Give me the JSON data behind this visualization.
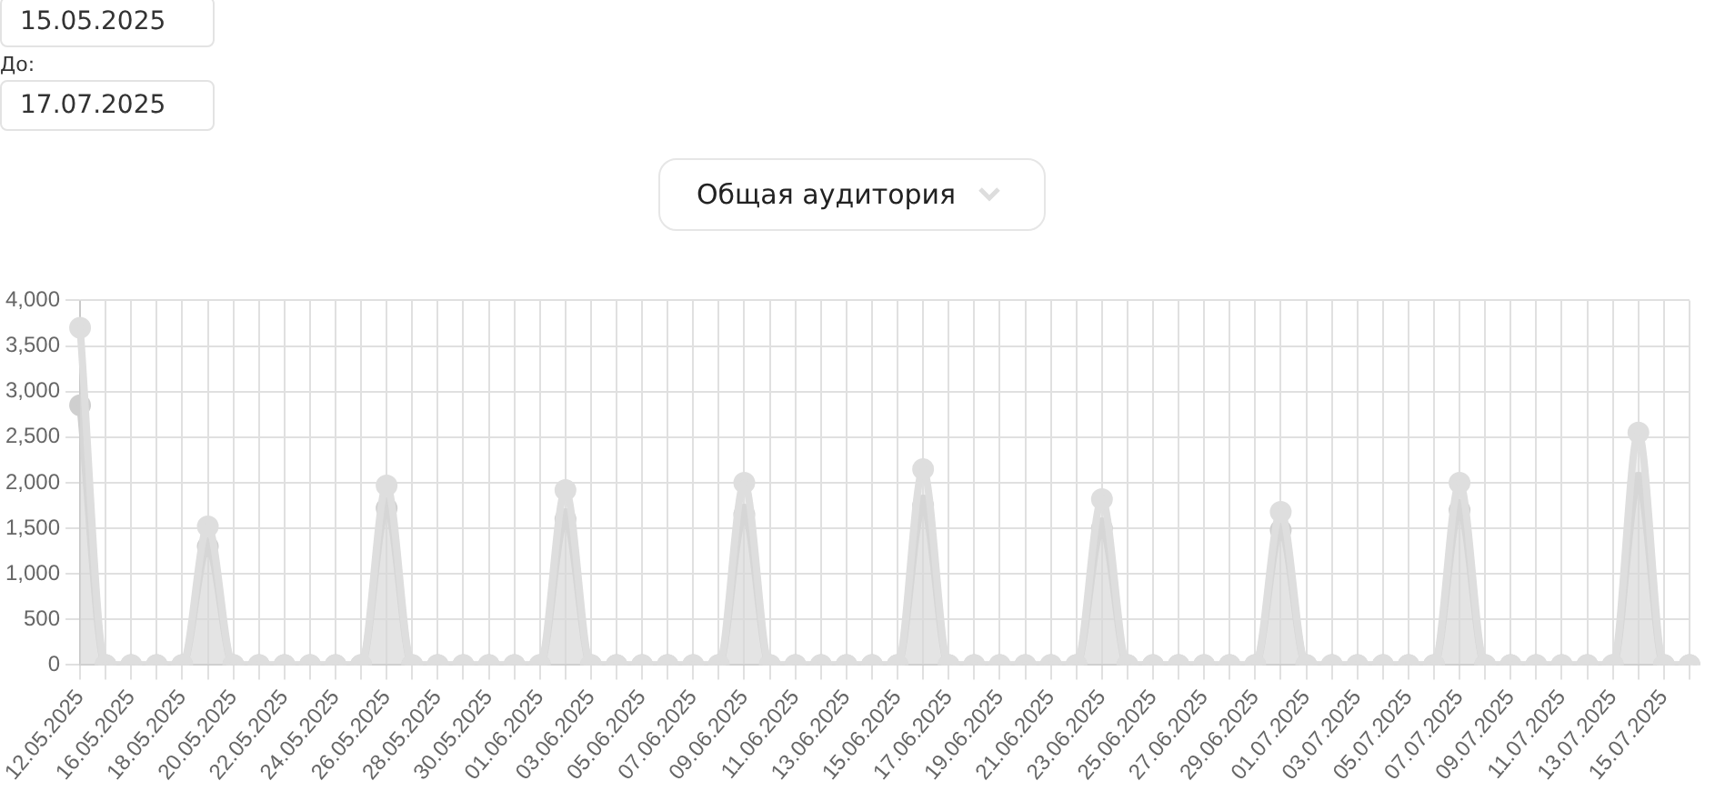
{
  "chart_data": {
    "type": "area",
    "categories": [
      "12.05.2025",
      null,
      "16.05.2025",
      null,
      "18.05.2025",
      null,
      "20.05.2025",
      null,
      "22.05.2025",
      null,
      "24.05.2025",
      null,
      "26.05.2025",
      null,
      "28.05.2025",
      null,
      "30.05.2025",
      null,
      "01.06.2025",
      null,
      "03.06.2025",
      null,
      "05.06.2025",
      null,
      "07.06.2025",
      null,
      "09.06.2025",
      null,
      "11.06.2025",
      null,
      "13.06.2025",
      null,
      "15.06.2025",
      null,
      "17.06.2025",
      null,
      "19.06.2025",
      null,
      "21.06.2025",
      null,
      "23.06.2025",
      null,
      "25.06.2025",
      null,
      "27.06.2025",
      null,
      "29.06.2025",
      null,
      "01.07.2025",
      null,
      "03.07.2025",
      null,
      "05.07.2025",
      null,
      "07.07.2025",
      null,
      "09.07.2025",
      null,
      "11.07.2025",
      null,
      "13.07.2025",
      null,
      "15.07.2025",
      null
    ],
    "series": [
      {
        "color": "#dedede",
        "values": [
          3700,
          0,
          0,
          0,
          0,
          1520,
          0,
          0,
          0,
          0,
          0,
          0,
          1970,
          0,
          0,
          0,
          0,
          0,
          0,
          1920,
          0,
          0,
          0,
          0,
          0,
          0,
          2000,
          0,
          0,
          0,
          0,
          0,
          0,
          2150,
          0,
          0,
          0,
          0,
          0,
          0,
          1820,
          0,
          0,
          0,
          0,
          0,
          0,
          1680,
          0,
          0,
          0,
          0,
          0,
          0,
          2000,
          0,
          0,
          0,
          0,
          0,
          0,
          2550,
          0,
          0
        ]
      },
      {
        "color": "#cfcfcf",
        "values": [
          2850,
          0,
          0,
          0,
          0,
          1300,
          0,
          0,
          0,
          0,
          0,
          0,
          1720,
          0,
          0,
          0,
          0,
          0,
          0,
          1600,
          0,
          0,
          0,
          0,
          0,
          0,
          1650,
          0,
          0,
          0,
          0,
          0,
          0,
          1750,
          0,
          0,
          0,
          0,
          0,
          0,
          1500,
          0,
          0,
          0,
          0,
          0,
          0,
          1480,
          0,
          0,
          0,
          0,
          0,
          0,
          1700,
          0,
          0,
          0,
          0,
          0,
          0,
          2000,
          0,
          0
        ]
      }
    ],
    "ylim": [
      0,
      4000
    ],
    "yticks": [
      0,
      500,
      {
        "value": 1000,
        "label": "1,000"
      },
      {
        "value": 1500,
        "label": "1,500"
      },
      {
        "value": 2000,
        "label": "2,000"
      },
      {
        "value": 2500,
        "label": "2,500"
      },
      {
        "value": 3000,
        "label": "3,000"
      },
      {
        "value": 3500,
        "label": "3,500"
      },
      {
        "value": 4000,
        "label": "4,000"
      }
    ],
    "grid": true,
    "marker": "circle",
    "legend": false,
    "annotations": [
      "15.05.2025",
      "До:",
      "17.07.2025",
      "Общая аудитория"
    ]
  }
}
